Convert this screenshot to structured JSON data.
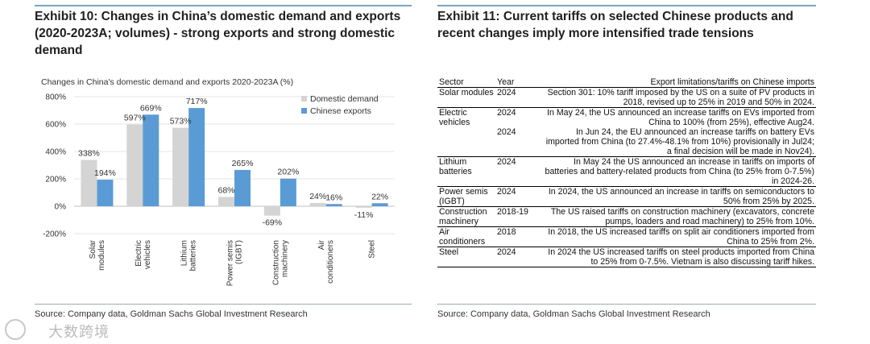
{
  "left": {
    "title": "Exhibit 10: Changes in China’s domestic demand and exports (2020-2023A; volumes) - strong exports and strong domestic demand",
    "source": "Source: Company data, Goldman Sachs Global Investment Research"
  },
  "right": {
    "title": "Exhibit 11: Current tariffs on selected Chinese products and recent changes imply more intensified trade tensions",
    "source": "Source: Company data, Goldman Sachs Global Investment Research",
    "table": {
      "headers": {
        "sector": "Sector",
        "year": "Year",
        "desc": "Export limitations/tariffs on Chinese imports"
      },
      "rows": [
        {
          "sector": "Solar modules",
          "year": "2024",
          "desc": "Section 301: 10% tariff imposed by the US on a suite of PV products in 2018, revised up to 25% in 2019 and 50% in 2024.",
          "group_start": true
        },
        {
          "sector": "Electric vehicles",
          "year": "2024",
          "desc": "In May 24, the US announced an increase tariffs on EVs imported from China to 100% (from 25%), effective Aug24.",
          "group_start": true
        },
        {
          "sector": "",
          "year": "2024",
          "desc": "In Jun 24, the EU announced an increase tariffs on battery EVs imported from China (to 27.4%-48.1% from 10%) provisionally in Jul24; a final decision will be made in Nov24).",
          "group_start": false
        },
        {
          "sector": "Lithium batteries",
          "year": "2024",
          "desc": "In May 24 the US announced an increase in tariffs on imports of batteries and battery-related products from China (to 25% from 0-7.5%) in 2024-26.",
          "group_start": true
        },
        {
          "sector": "Power semis (IGBT)",
          "year": "2024",
          "desc": "In 2024, the US announced an increase in tariffs on semiconductors to 50% from 25% by 2025.",
          "group_start": true
        },
        {
          "sector": "Construction machinery",
          "year": "2018-19",
          "desc": "The US raised tariffs on construction machinery (excavators, concrete pumps, loaders and road machinery) to 25% from 10%.",
          "group_start": true
        },
        {
          "sector": "Air conditioners",
          "year": "2018",
          "desc": "In 2018, the US increased tariffs on split air conditioners imported from China to 25% from 2%.",
          "group_start": true
        },
        {
          "sector": "Steel",
          "year": "2024",
          "desc": "In 2024 the US increased tariffs on steel products imported from China to 25% from 0-7.5%. Vietnam is also discussing tariff hikes.",
          "group_start": true
        }
      ]
    }
  },
  "watermark": "大数跨境",
  "colors": {
    "domestic": "#d4d4d4",
    "exports": "#5b9bd5",
    "rule": "#7aa6c2"
  },
  "chart_data": {
    "type": "bar",
    "title": "Changes in China's domestic demand and exports 2020-2023A (%)",
    "categories": [
      "Solar modules",
      "Electric vehicles",
      "Lithium batteries",
      "Power semis (IGBT)",
      "Construction machinery",
      "Air conditioners",
      "Steel"
    ],
    "series": [
      {
        "name": "Domestic demand",
        "values": [
          338,
          597,
          573,
          68,
          -69,
          24,
          -11
        ],
        "labels": [
          "338%",
          "597%",
          "573%",
          "68%",
          "-69%",
          "24%",
          "-11%"
        ]
      },
      {
        "name": "Chinese exports",
        "values": [
          194,
          669,
          717,
          265,
          202,
          16,
          22
        ],
        "labels": [
          "194%",
          "669%",
          "717%",
          "265%",
          "202%",
          "16%",
          "22%"
        ]
      }
    ],
    "yticks": [
      800,
      600,
      400,
      200,
      0,
      -200
    ],
    "yticklabels": [
      "800%",
      "600%",
      "400%",
      "200%",
      "0%",
      "-200%"
    ],
    "ylim": [
      -200,
      800
    ],
    "legend": "top-right"
  }
}
